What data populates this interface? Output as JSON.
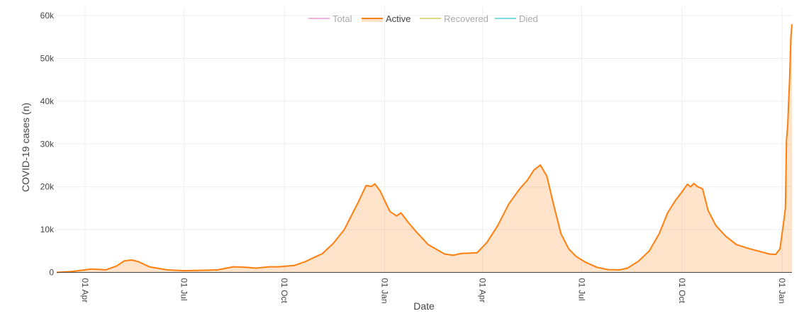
{
  "chart_data": {
    "type": "area",
    "xlabel": "Date",
    "ylabel": "COVID-19 cases (n)",
    "x_range": [
      "2020-03-06",
      "2022-01-10"
    ],
    "ylim": [
      0,
      62000
    ],
    "y_ticks": [
      {
        "value": 0,
        "label": "0"
      },
      {
        "value": 10000,
        "label": "10k"
      },
      {
        "value": 20000,
        "label": "20k"
      },
      {
        "value": 30000,
        "label": "30k"
      },
      {
        "value": 40000,
        "label": "40k"
      },
      {
        "value": 50000,
        "label": "50k"
      },
      {
        "value": 60000,
        "label": "60k"
      }
    ],
    "x_ticks": [
      {
        "date": "2020-04-01",
        "label": "01 Apr"
      },
      {
        "date": "2020-07-01",
        "label": "01 Jul"
      },
      {
        "date": "2020-10-01",
        "label": "01 Oct"
      },
      {
        "date": "2021-01-01",
        "label": "01 Jan"
      },
      {
        "date": "2021-04-01",
        "label": "01 Apr"
      },
      {
        "date": "2021-07-01",
        "label": "01 Jul"
      },
      {
        "date": "2021-10-01",
        "label": "01 Oct"
      },
      {
        "date": "2022-01-01",
        "label": "01 Jan"
      }
    ],
    "grid": true,
    "legend_position": "top-center",
    "legend": [
      {
        "name": "Total",
        "color": "#e377c2",
        "active": false
      },
      {
        "name": "Active",
        "color": "#ff7f0e",
        "active": true
      },
      {
        "name": "Recovered",
        "color": "#bcbd22",
        "active": false
      },
      {
        "name": "Died",
        "color": "#17becf",
        "active": false
      }
    ],
    "series": [
      {
        "name": "Active",
        "color": "#ff7f0e",
        "fill": "rgba(255,127,14,0.22)",
        "points": [
          [
            "2020-03-06",
            0
          ],
          [
            "2020-03-20",
            200
          ],
          [
            "2020-04-01",
            600
          ],
          [
            "2020-04-07",
            800
          ],
          [
            "2020-04-20",
            600
          ],
          [
            "2020-04-30",
            1500
          ],
          [
            "2020-05-07",
            2700
          ],
          [
            "2020-05-14",
            2900
          ],
          [
            "2020-05-20",
            2500
          ],
          [
            "2020-05-30",
            1300
          ],
          [
            "2020-06-15",
            600
          ],
          [
            "2020-07-01",
            400
          ],
          [
            "2020-07-20",
            500
          ],
          [
            "2020-08-01",
            600
          ],
          [
            "2020-08-15",
            1300
          ],
          [
            "2020-08-26",
            1200
          ],
          [
            "2020-09-05",
            1000
          ],
          [
            "2020-09-17",
            1300
          ],
          [
            "2020-09-25",
            1300
          ],
          [
            "2020-10-10",
            1600
          ],
          [
            "2020-10-20",
            2500
          ],
          [
            "2020-10-30",
            3700
          ],
          [
            "2020-11-05",
            4400
          ],
          [
            "2020-11-15",
            6800
          ],
          [
            "2020-11-25",
            10000
          ],
          [
            "2020-12-01",
            13000
          ],
          [
            "2020-12-08",
            16500
          ],
          [
            "2020-12-15",
            20300
          ],
          [
            "2020-12-20",
            20100
          ],
          [
            "2020-12-23",
            20700
          ],
          [
            "2020-12-28",
            19000
          ],
          [
            "2021-01-01",
            16800
          ],
          [
            "2021-01-06",
            14200
          ],
          [
            "2021-01-12",
            13200
          ],
          [
            "2021-01-16",
            13900
          ],
          [
            "2021-01-23",
            11600
          ],
          [
            "2021-01-30",
            9500
          ],
          [
            "2021-02-10",
            6500
          ],
          [
            "2021-02-25",
            4300
          ],
          [
            "2021-03-05",
            4000
          ],
          [
            "2021-03-12",
            4400
          ],
          [
            "2021-03-20",
            4500
          ],
          [
            "2021-03-27",
            4600
          ],
          [
            "2021-04-05",
            7000
          ],
          [
            "2021-04-15",
            11000
          ],
          [
            "2021-04-25",
            16000
          ],
          [
            "2021-05-05",
            19500
          ],
          [
            "2021-05-12",
            21500
          ],
          [
            "2021-05-18",
            23900
          ],
          [
            "2021-05-24",
            25100
          ],
          [
            "2021-05-30",
            22500
          ],
          [
            "2021-06-05",
            16000
          ],
          [
            "2021-06-12",
            9000
          ],
          [
            "2021-06-19",
            5500
          ],
          [
            "2021-06-26",
            3700
          ],
          [
            "2021-07-05",
            2300
          ],
          [
            "2021-07-15",
            1200
          ],
          [
            "2021-07-25",
            650
          ],
          [
            "2021-08-05",
            600
          ],
          [
            "2021-08-12",
            1000
          ],
          [
            "2021-08-22",
            2600
          ],
          [
            "2021-09-01",
            5000
          ],
          [
            "2021-09-10",
            9000
          ],
          [
            "2021-09-18",
            14000
          ],
          [
            "2021-09-25",
            16800
          ],
          [
            "2021-10-01",
            18800
          ],
          [
            "2021-10-06",
            20600
          ],
          [
            "2021-10-09",
            20000
          ],
          [
            "2021-10-12",
            20800
          ],
          [
            "2021-10-15",
            20100
          ],
          [
            "2021-10-20",
            19500
          ],
          [
            "2021-10-25",
            14500
          ],
          [
            "2021-11-01",
            11000
          ],
          [
            "2021-11-10",
            8500
          ],
          [
            "2021-11-20",
            6500
          ],
          [
            "2021-12-01",
            5600
          ],
          [
            "2021-12-10",
            5000
          ],
          [
            "2021-12-20",
            4300
          ],
          [
            "2021-12-26",
            4200
          ],
          [
            "2021-12-30",
            5500
          ],
          [
            "2022-01-02",
            11000
          ],
          [
            "2022-01-04",
            15000
          ],
          [
            "2022-01-05",
            31000
          ],
          [
            "2022-01-06",
            34000
          ],
          [
            "2022-01-07",
            40000
          ],
          [
            "2022-01-08",
            46000
          ],
          [
            "2022-01-09",
            55000
          ],
          [
            "2022-01-10",
            58000
          ]
        ]
      }
    ]
  }
}
